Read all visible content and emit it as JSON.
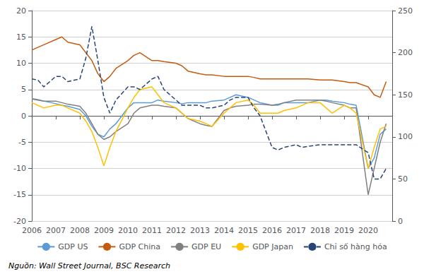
{
  "chart_data": {
    "type": "line",
    "x": [
      2006,
      2006.25,
      2006.5,
      2007,
      2007.25,
      2007.5,
      2008,
      2008.25,
      2008.5,
      2008.75,
      2009,
      2009.25,
      2009.5,
      2010,
      2010.25,
      2010.5,
      2011,
      2011.25,
      2011.5,
      2012,
      2012.25,
      2012.5,
      2013,
      2013.25,
      2013.5,
      2014,
      2014.25,
      2014.5,
      2015,
      2015.25,
      2015.5,
      2016,
      2016.25,
      2016.5,
      2017,
      2017.25,
      2017.5,
      2018,
      2018.25,
      2018.5,
      2019,
      2019.25,
      2019.5,
      2020,
      2020.25,
      2020.5,
      2020.75
    ],
    "series": [
      {
        "name": "GDP US",
        "color": "#5b9bd5",
        "line_style": "solid",
        "values": [
          3.3,
          3.1,
          2.8,
          2.3,
          2.0,
          1.8,
          1.2,
          0.0,
          -2.0,
          -3.5,
          -4.0,
          -2.5,
          -1.5,
          1.5,
          2.5,
          2.5,
          2.5,
          3.0,
          2.8,
          2.5,
          2.3,
          2.5,
          2.5,
          2.5,
          2.8,
          3.0,
          3.5,
          4.0,
          3.5,
          3.0,
          2.5,
          2.0,
          2.0,
          2.5,
          2.5,
          2.5,
          2.5,
          3.0,
          3.0,
          2.8,
          2.5,
          2.2,
          2.0,
          -10.0,
          -8.0,
          -3.5,
          -2.5
        ]
      },
      {
        "name": "GDP China",
        "color": "#c55a11",
        "line_style": "solid",
        "values": [
          12.5,
          13.0,
          13.5,
          14.5,
          15.0,
          14.0,
          13.5,
          12.0,
          10.5,
          8.0,
          6.5,
          7.5,
          9.0,
          10.5,
          11.5,
          12.0,
          10.5,
          10.5,
          10.3,
          10.0,
          9.5,
          8.5,
          8.0,
          7.8,
          7.8,
          7.5,
          7.5,
          7.5,
          7.5,
          7.3,
          7.0,
          7.0,
          7.0,
          7.0,
          7.0,
          7.0,
          7.0,
          6.8,
          6.8,
          6.8,
          6.5,
          6.3,
          6.3,
          5.5,
          4.0,
          3.5,
          6.5
        ]
      },
      {
        "name": "GDP EU",
        "color": "#808080",
        "line_style": "solid",
        "values": [
          3.2,
          3.0,
          2.8,
          2.8,
          2.5,
          2.2,
          1.8,
          0.5,
          -1.5,
          -3.5,
          -4.5,
          -4.0,
          -3.0,
          -1.5,
          0.5,
          1.5,
          2.0,
          2.0,
          1.8,
          1.5,
          0.5,
          -0.5,
          -1.5,
          -1.8,
          -2.0,
          1.0,
          1.5,
          1.8,
          2.0,
          2.2,
          2.2,
          2.0,
          2.2,
          2.5,
          3.0,
          3.0,
          3.0,
          3.0,
          2.8,
          2.5,
          2.0,
          1.5,
          1.5,
          -15.0,
          -10.0,
          -5.0,
          -1.5
        ]
      },
      {
        "name": "GDP Japan",
        "color": "#ffc000",
        "line_style": "solid",
        "values": [
          2.5,
          2.0,
          1.5,
          2.0,
          2.0,
          1.5,
          0.5,
          -1.0,
          -3.0,
          -6.0,
          -9.5,
          -6.0,
          -3.0,
          1.5,
          3.5,
          5.0,
          5.5,
          4.0,
          2.5,
          1.5,
          0.5,
          -0.5,
          -1.0,
          -1.5,
          -2.0,
          0.5,
          1.5,
          2.5,
          3.0,
          2.0,
          0.5,
          0.5,
          0.5,
          1.0,
          1.5,
          2.0,
          2.5,
          2.5,
          1.5,
          0.5,
          2.0,
          1.5,
          0.5,
          -10.0,
          -6.0,
          -2.5,
          -2.0
        ]
      },
      {
        "name": "Chỉ số hàng hóa",
        "color": "#264478",
        "line_style": "dashed",
        "values": [
          7.0,
          6.8,
          5.5,
          7.5,
          7.5,
          6.5,
          7.0,
          11.0,
          17.0,
          10.5,
          3.5,
          0.5,
          3.0,
          5.5,
          5.5,
          5.0,
          7.0,
          7.5,
          5.0,
          3.0,
          2.0,
          2.0,
          2.0,
          1.5,
          1.5,
          2.0,
          3.0,
          3.5,
          3.5,
          1.5,
          0.0,
          -6.0,
          -6.5,
          -6.0,
          -5.5,
          -6.0,
          -5.8,
          -5.5,
          -5.5,
          -5.5,
          -5.5,
          -5.5,
          -5.5,
          -7.0,
          -12.0,
          -12.0,
          -10.0
        ]
      }
    ],
    "xlim": [
      2006,
      2021
    ],
    "xticks": [
      2006,
      2007,
      2008,
      2009,
      2010,
      2011,
      2012,
      2013,
      2014,
      2015,
      2016,
      2017,
      2018,
      2019,
      2020
    ],
    "ylim": [
      -20,
      20
    ],
    "yticks": [
      -20,
      -15,
      -10,
      -5,
      0,
      5,
      10,
      15,
      20
    ],
    "y2lim": [
      0,
      250
    ],
    "y2ticks": [
      0,
      50,
      100,
      150,
      200,
      250
    ],
    "grid": true,
    "legend": "bottom",
    "annotations": [
      "Nguồn: Wall Street Journal, BSC Research"
    ]
  }
}
